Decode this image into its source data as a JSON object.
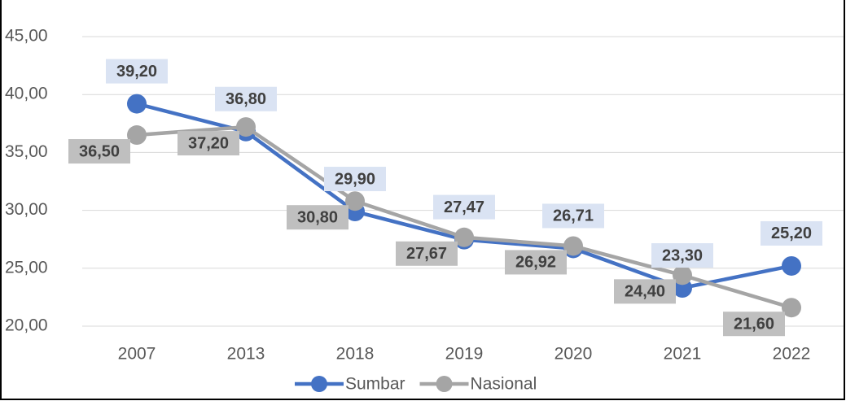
{
  "chart_data": {
    "type": "line",
    "categories": [
      "2007",
      "2013",
      "2018",
      "2019",
      "2020",
      "2021",
      "2022"
    ],
    "series": [
      {
        "name": "Sumbar",
        "color": "#4472c4",
        "values": [
          39.2,
          36.8,
          29.9,
          27.47,
          26.71,
          23.3,
          25.2
        ],
        "value_labels": [
          "39,20",
          "36,80",
          "29,90",
          "27,47",
          "26,71",
          "23,30",
          "25,20"
        ]
      },
      {
        "name": "Nasional",
        "color": "#a5a5a5",
        "values": [
          36.5,
          37.2,
          30.8,
          27.67,
          26.92,
          24.4,
          21.6
        ],
        "value_labels": [
          "36,50",
          "37,20",
          "30,80",
          "27,67",
          "26,92",
          "24,40",
          "21,60"
        ]
      }
    ],
    "ylim": [
      20,
      45
    ],
    "yticks": [
      {
        "value": 20,
        "label": "20,00"
      },
      {
        "value": 25,
        "label": "25,00"
      },
      {
        "value": 30,
        "label": "30,00"
      },
      {
        "value": 35,
        "label": "35,00"
      },
      {
        "value": 40,
        "label": "40,00"
      },
      {
        "value": 45,
        "label": "45,00"
      }
    ],
    "grid": true,
    "legend": "bottom"
  }
}
